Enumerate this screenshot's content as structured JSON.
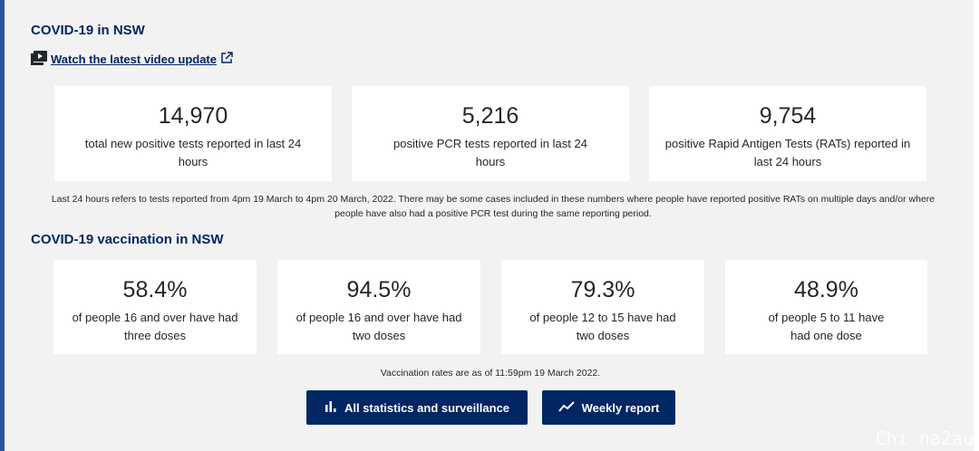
{
  "section1": {
    "title": "COVID-19 in NSW",
    "video_link": "Watch the latest video update",
    "cards": [
      {
        "value": "14,970",
        "desc": "total new positive tests reported in last 24 hours"
      },
      {
        "value": "5,216",
        "desc": "positive PCR tests reported in last 24 hours"
      },
      {
        "value": "9,754",
        "desc": "positive Rapid Antigen Tests (RATs) reported in last 24 hours"
      }
    ],
    "note": "Last 24 hours refers to tests reported from 4pm 19 March to 4pm 20 March, 2022. There may be some cases included in these numbers where people have reported positive RATs on multiple days and/or where people have also had a positive PCR test during the same reporting period."
  },
  "section2": {
    "title": "COVID-19 vaccination in NSW",
    "cards": [
      {
        "value": "58.4%",
        "desc": "of people 16 and over have had three doses"
      },
      {
        "value": "94.5%",
        "desc": "of people 16 and over have had two doses"
      },
      {
        "value": "79.3%",
        "desc": "of people 12 to 15 have had two doses"
      },
      {
        "value": "48.9%",
        "desc": "of people 5 to 11 have had one dose"
      }
    ],
    "note": "Vaccination rates are as of 11:59pm 19 March 2022."
  },
  "buttons": {
    "statistics": "All statistics and surveillance",
    "weekly": "Weekly report"
  },
  "watermark": "Chi na2au",
  "colors": {
    "accent": "#002664",
    "left_bar": "#2e5299",
    "background": "#f2f2f2"
  },
  "icons": {
    "video": "video-play-icon",
    "external": "external-link-icon",
    "bar_chart": "bar-chart-icon",
    "trend": "trend-line-icon"
  }
}
